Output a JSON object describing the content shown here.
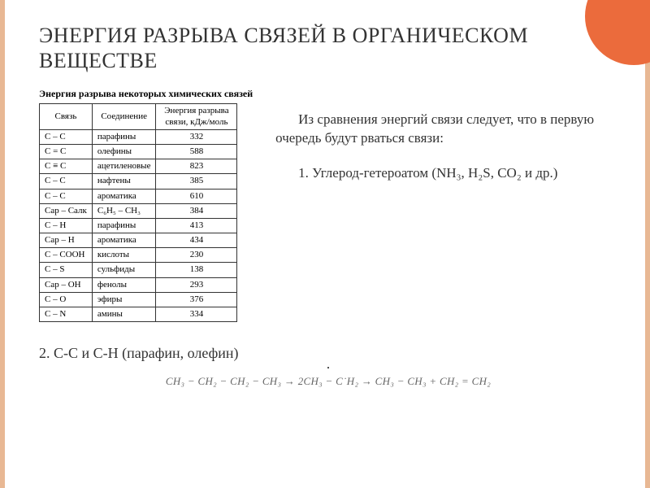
{
  "title": "ЭНЕРГИЯ РАЗРЫВА СВЯЗЕЙ В ОРГАНИЧЕСКОМ ВЕЩЕСТВЕ",
  "table": {
    "caption": "Энергия разрыва некоторых химических связей",
    "headers": {
      "bond": "Связь",
      "compound": "Соединение",
      "energy": "Энергия разрыва связи, кДж/моль"
    },
    "rows": [
      {
        "bond": "C – C",
        "compound": "парафины",
        "energy": "332"
      },
      {
        "bond": "C = C",
        "compound": "олефины",
        "energy": "588"
      },
      {
        "bond": "C ≡ C",
        "compound": "ацетиленовые",
        "energy": "823"
      },
      {
        "bond": "C – C",
        "compound": "нафтены",
        "energy": "385"
      },
      {
        "bond": "C – C",
        "compound": "ароматика",
        "energy": "610"
      },
      {
        "bond": "Cар – Cалк",
        "compound": "C₆H₅ – CH₃",
        "energy": "384"
      },
      {
        "bond": "C – H",
        "compound": "парафины",
        "energy": "413"
      },
      {
        "bond": "Cар – H",
        "compound": "ароматика",
        "energy": "434"
      },
      {
        "bond": "C – COOH",
        "compound": "кислоты",
        "energy": "230"
      },
      {
        "bond": "C – S",
        "compound": "сульфиды",
        "energy": "138"
      },
      {
        "bond": "Cар – OH",
        "compound": "фенолы",
        "energy": "293"
      },
      {
        "bond": "C – O",
        "compound": "эфиры",
        "energy": "376"
      },
      {
        "bond": "C – N",
        "compound": "амины",
        "energy": "334"
      }
    ]
  },
  "side_text": {
    "para1": "Из сравнения энергий связи следует, что в первую очередь будут рваться связи:",
    "item1": "1. Углерод-гетероатом  (NH₃, H₂S, CO₂ и др.)"
  },
  "footer": "2. C-C и C-H (парафин, олефин)",
  "reaction": "CH₃ − CH₂ − CH₂ − CH₃ → 2CH₃ − C˙H₂ → CH₃ − CH₃ + CH₂ = CH₂",
  "colors": {
    "accent": "#eb6b3c",
    "border": "#e8b894",
    "text": "#333333"
  }
}
